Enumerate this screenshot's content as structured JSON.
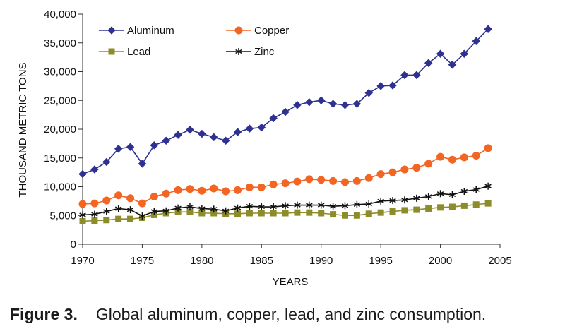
{
  "chart_data": {
    "type": "line",
    "ylabel": "THOUSAND METRIC TONS",
    "xlabel": "YEARS",
    "xlim": [
      1970,
      2005
    ],
    "ylim": [
      0,
      40000
    ],
    "x_ticks": [
      "1970",
      "1975",
      "1980",
      "1985",
      "1990",
      "1995",
      "2000",
      "2005"
    ],
    "y_ticks": [
      "0",
      "5,000",
      "10,000",
      "15,000",
      "20,000",
      "25,000",
      "30,000",
      "35,000",
      "40,000"
    ],
    "grid": false,
    "legend_position": "top-left",
    "x": [
      1970,
      1971,
      1972,
      1973,
      1974,
      1975,
      1976,
      1977,
      1978,
      1979,
      1980,
      1981,
      1982,
      1983,
      1984,
      1985,
      1986,
      1987,
      1988,
      1989,
      1990,
      1991,
      1992,
      1993,
      1994,
      1995,
      1996,
      1997,
      1998,
      1999,
      2000,
      2001,
      2002,
      2003,
      2004
    ],
    "series": [
      {
        "name": "Aluminum",
        "color": "#2e3192",
        "marker": "diamond",
        "values": [
          12200,
          13000,
          14300,
          16600,
          16900,
          14000,
          17200,
          18000,
          19000,
          19900,
          19200,
          18600,
          18000,
          19500,
          20100,
          20300,
          21900,
          23000,
          24200,
          24700,
          25000,
          24400,
          24200,
          24400,
          26300,
          27500,
          27600,
          29400,
          29400,
          31500,
          33100,
          31200,
          33100,
          35300,
          37400
        ]
      },
      {
        "name": "Copper",
        "color": "#f26522",
        "marker": "circle",
        "values": [
          7000,
          7100,
          7600,
          8500,
          8000,
          7100,
          8300,
          8800,
          9400,
          9600,
          9300,
          9700,
          9200,
          9400,
          9900,
          9900,
          10400,
          10600,
          10900,
          11300,
          11200,
          11000,
          10800,
          11000,
          11500,
          12200,
          12500,
          13000,
          13300,
          14000,
          15200,
          14700,
          15100,
          15400,
          16700
        ]
      },
      {
        "name": "Lead",
        "color": "#8c8c2b",
        "marker": "square",
        "values": [
          4000,
          4100,
          4200,
          4400,
          4400,
          4600,
          5100,
          5400,
          5600,
          5600,
          5400,
          5400,
          5300,
          5300,
          5400,
          5400,
          5400,
          5400,
          5500,
          5500,
          5400,
          5200,
          5000,
          5000,
          5300,
          5500,
          5700,
          5900,
          6000,
          6200,
          6400,
          6500,
          6700,
          6900,
          7100
        ]
      },
      {
        "name": "Zinc",
        "color": "#111111",
        "marker": "asterisk",
        "values": [
          5100,
          5200,
          5700,
          6200,
          6000,
          4900,
          5700,
          5800,
          6300,
          6500,
          6200,
          6100,
          5800,
          6300,
          6600,
          6500,
          6500,
          6700,
          6800,
          6800,
          6800,
          6600,
          6700,
          6900,
          7000,
          7500,
          7600,
          7700,
          8000,
          8300,
          8800,
          8600,
          9200,
          9500,
          10100
        ]
      }
    ]
  },
  "caption": {
    "label": "Figure 3.",
    "text": "Global aluminum, copper, lead, and zinc consumption."
  }
}
